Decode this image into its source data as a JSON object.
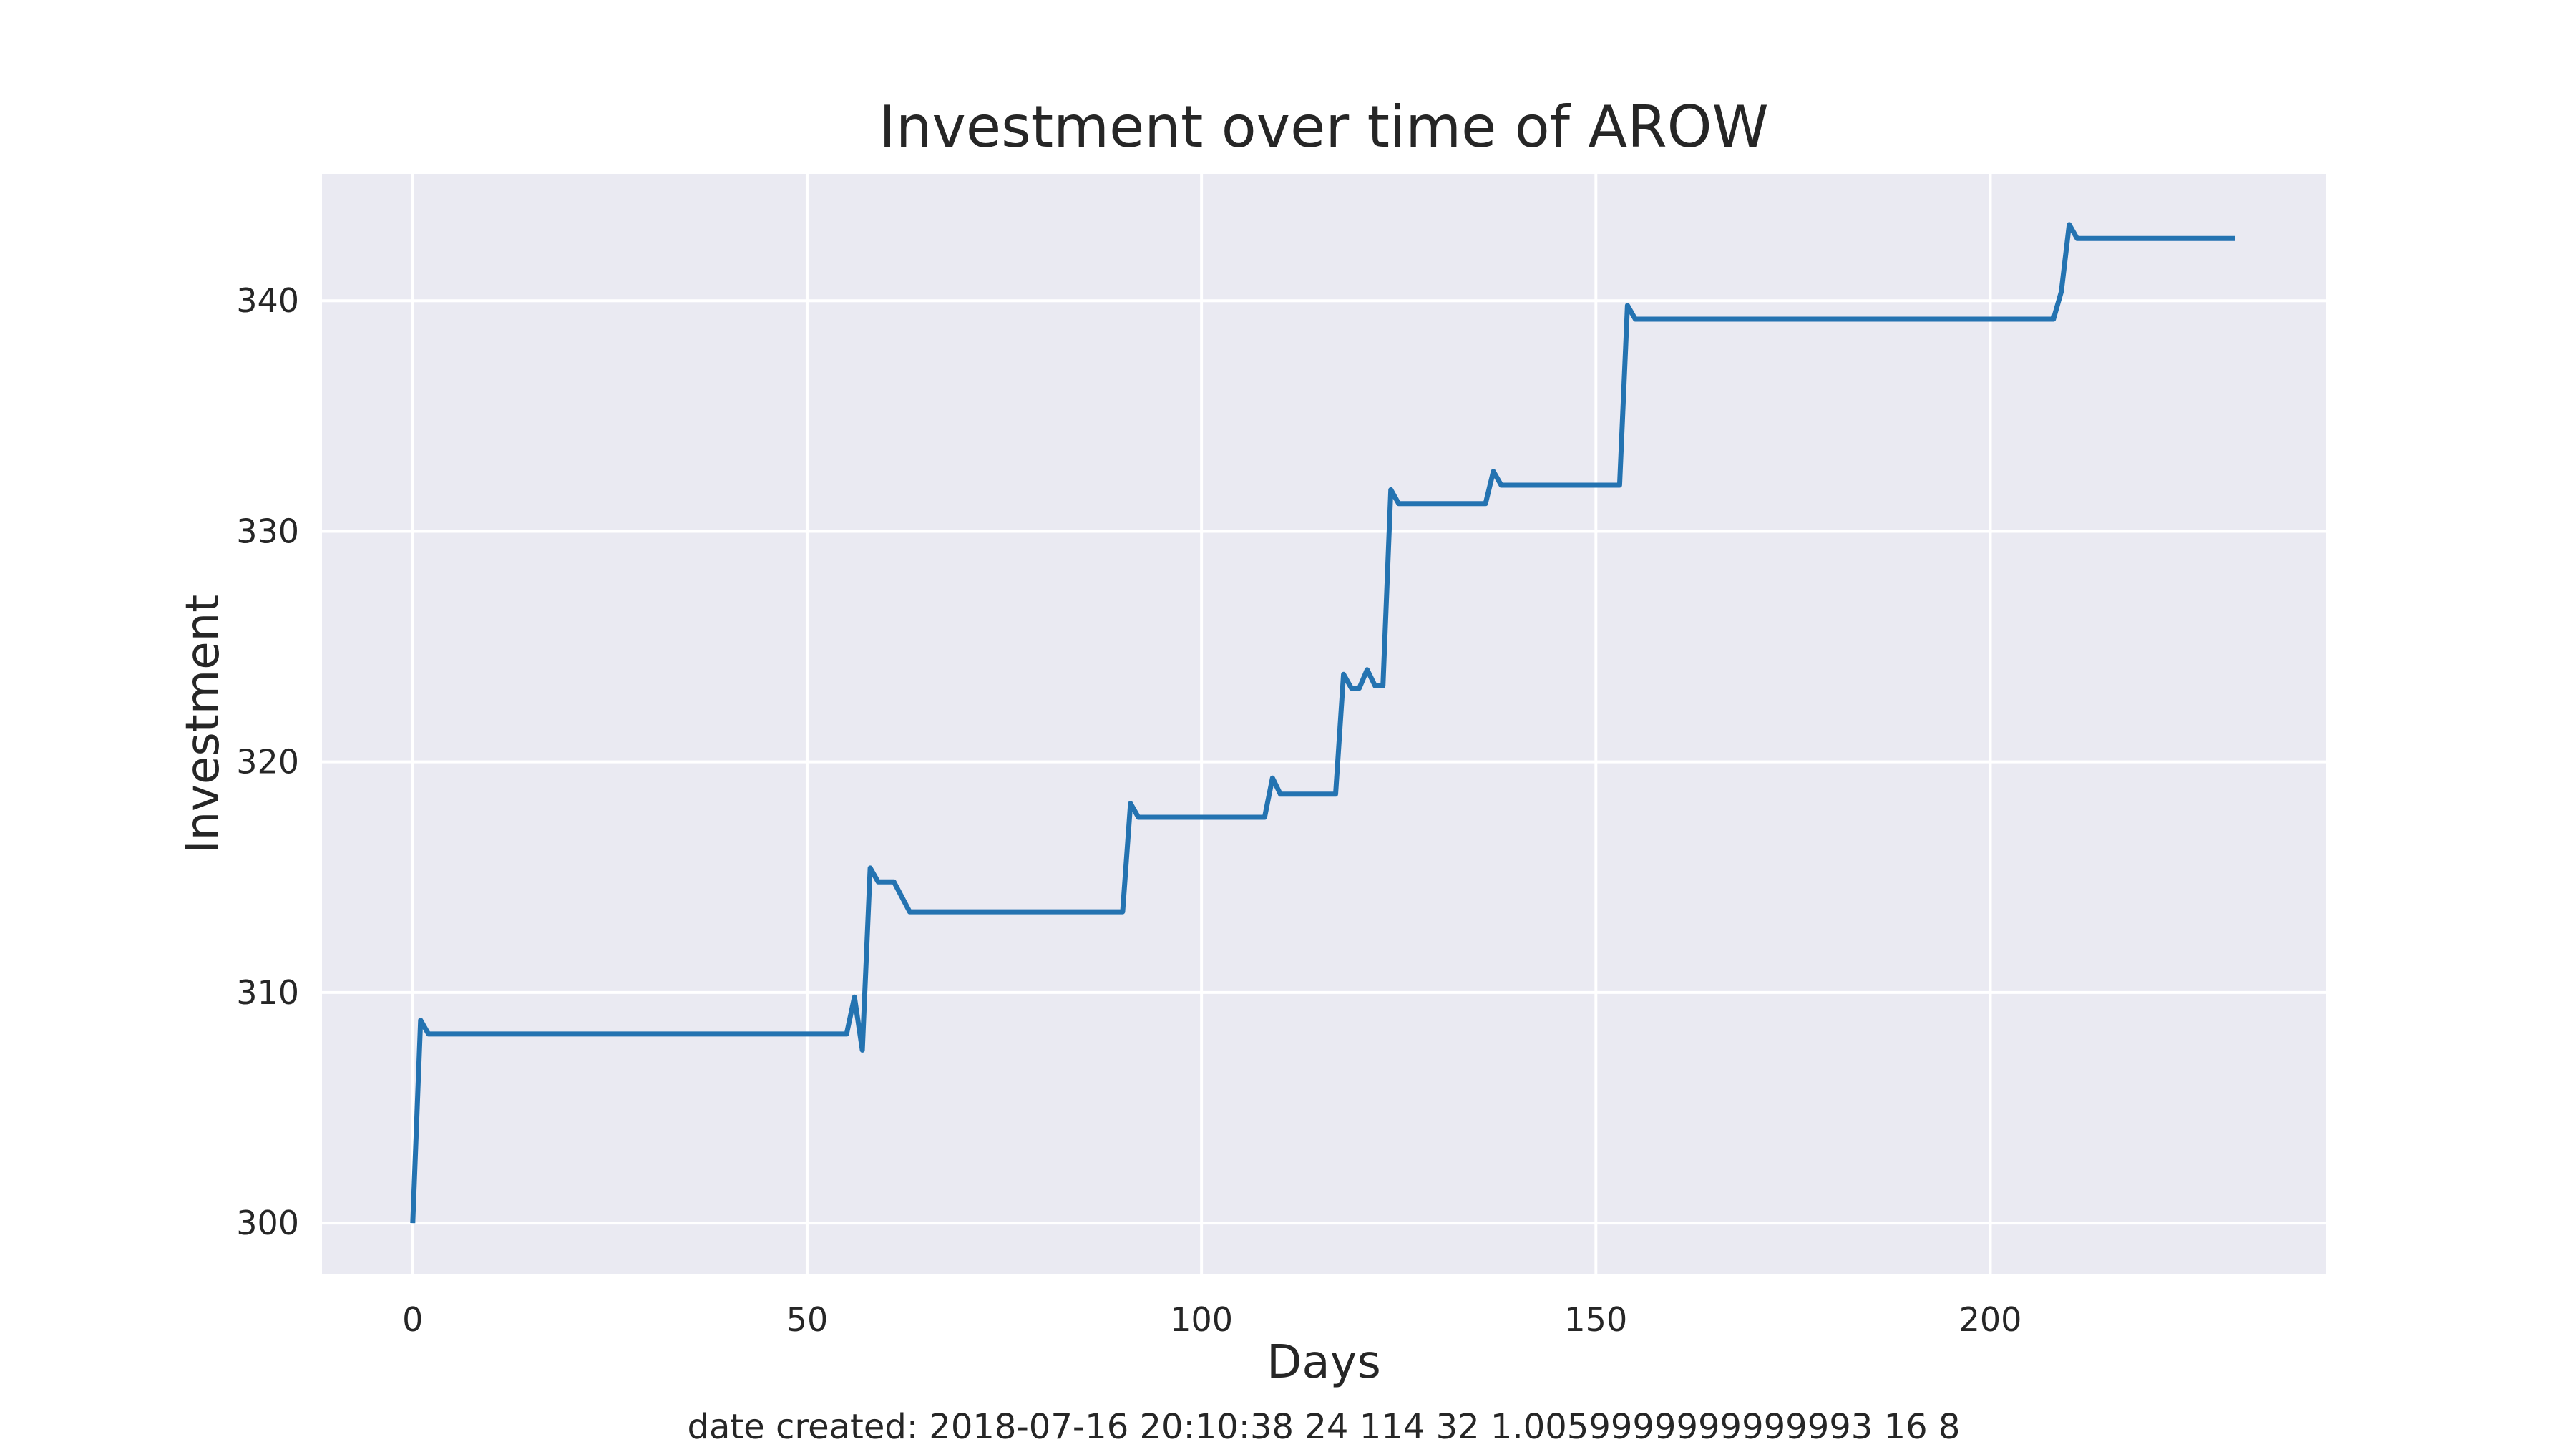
{
  "chart_data": {
    "type": "line",
    "title": "Investment over time of AROW",
    "xlabel": "Days",
    "ylabel": "Investment",
    "footer": "date created: 2018-07-16 20:10:38 24 114 32 1.0059999999999993 16 8",
    "xlim": [
      -11.5,
      242.5
    ],
    "ylim": [
      297.8,
      345.5
    ],
    "x_ticks": [
      0,
      50,
      100,
      150,
      200
    ],
    "y_ticks": [
      300,
      310,
      320,
      330,
      340
    ],
    "grid": true,
    "colors": {
      "background": "#ffffff",
      "plot_background": "#eaeaf2",
      "grid": "#ffffff",
      "line": "#2473b1",
      "text": "#262626"
    },
    "series": [
      {
        "x": [
          0,
          1,
          2,
          55,
          56,
          57,
          58,
          59,
          61,
          63,
          90,
          91,
          92,
          108,
          109,
          110,
          117,
          118,
          119,
          120,
          121,
          122,
          123,
          124,
          125,
          136,
          137,
          138,
          153,
          154,
          155,
          208,
          209,
          210,
          211,
          231
        ],
        "values": [
          300.0,
          308.8,
          308.2,
          308.2,
          309.8,
          307.5,
          315.4,
          314.8,
          314.8,
          313.5,
          313.5,
          318.2,
          317.6,
          317.6,
          319.3,
          318.6,
          318.6,
          323.8,
          323.2,
          323.2,
          324.0,
          323.3,
          323.3,
          331.8,
          331.2,
          331.2,
          332.6,
          332.0,
          332.0,
          339.8,
          339.2,
          339.2,
          340.4,
          343.3,
          342.7,
          342.7
        ]
      }
    ]
  }
}
